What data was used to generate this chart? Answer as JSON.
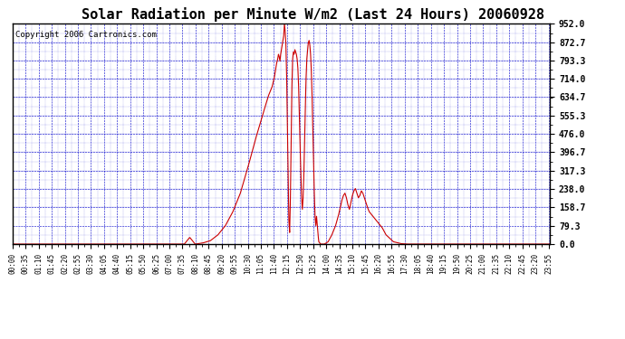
{
  "title": "Solar Radiation per Minute W/m2 (Last 24 Hours) 20060928",
  "copyright_text": "Copyright 2006 Cartronics.com",
  "bg_color": "#FFFFFF",
  "plot_bg_color": "#FFFFFF",
  "line_color": "#CC0000",
  "grid_color": "#0000CC",
  "title_color": "#000000",
  "copyright_color": "#000000",
  "border_color": "#000000",
  "ymin": 0.0,
  "ymax": 952.0,
  "yticks": [
    0.0,
    79.3,
    158.7,
    238.0,
    317.3,
    396.7,
    476.0,
    555.3,
    634.7,
    714.0,
    793.3,
    872.7,
    952.0
  ],
  "xlabel_fontsize": 5.5,
  "ylabel_fontsize": 7.0,
  "title_fontsize": 11,
  "copyright_fontsize": 6.5
}
